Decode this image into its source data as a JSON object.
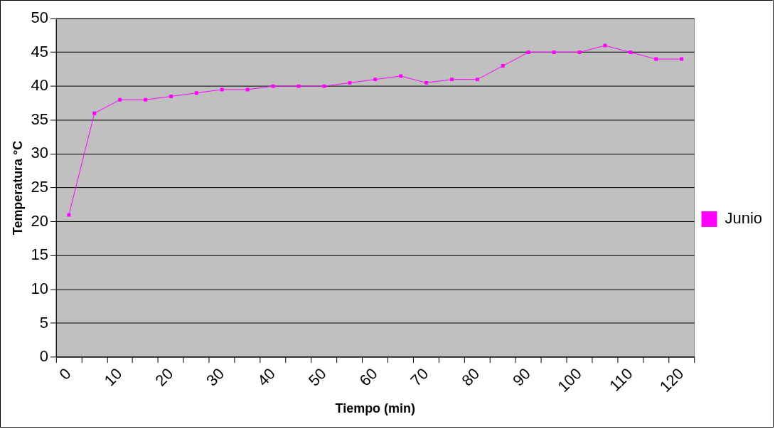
{
  "chart_data": {
    "type": "line",
    "xlabel": "Tiempo (min)",
    "ylabel": "Temperatura °C",
    "categories": [
      "0",
      null,
      "10",
      null,
      "20",
      null,
      "30",
      null,
      "40",
      null,
      "50",
      null,
      "60",
      null,
      "70",
      null,
      "80",
      null,
      "90",
      null,
      "100",
      null,
      "110",
      null,
      "120"
    ],
    "series": [
      {
        "name": "Junio",
        "color": "#ff00ff",
        "values": [
          21,
          36,
          38,
          38,
          38.5,
          39,
          39.5,
          39.5,
          40,
          40,
          40,
          40.5,
          41,
          41.5,
          40.5,
          41,
          41,
          43,
          45,
          45,
          45,
          46,
          45,
          44,
          44
        ]
      }
    ],
    "ylim": [
      0,
      50
    ],
    "yticks": [
      0,
      5,
      10,
      15,
      20,
      25,
      30,
      35,
      40,
      45,
      50
    ],
    "grid": "y",
    "legend": "right",
    "marker": "square",
    "line_style": "solid"
  }
}
